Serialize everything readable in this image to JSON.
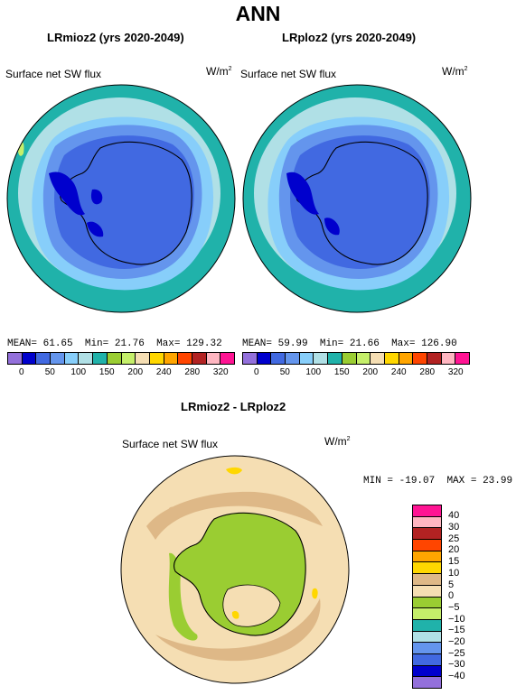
{
  "figure_title": "ANN",
  "panels": [
    {
      "title": "LRmioz2 (yrs 2020-2049)",
      "variable": "Surface net SW flux",
      "units_base": "W/m",
      "units_exp": "2",
      "mean_label": "MEAN=",
      "mean": "61.65",
      "min_label": "Min=",
      "min": "21.76",
      "max_label": "Max=",
      "max": "129.32"
    },
    {
      "title": "LRploz2 (yrs 2020-2049)",
      "variable": "Surface net SW flux",
      "units_base": "W/m",
      "units_exp": "2",
      "mean_label": "MEAN=",
      "mean": "59.99",
      "min_label": "Min=",
      "min": "21.66",
      "max_label": "Max=",
      "max": "126.90"
    }
  ],
  "top_colorbar": {
    "colors": [
      "#9370db",
      "#0000cd",
      "#4169e1",
      "#6495ed",
      "#87cefa",
      "#b0e0e6",
      "#20b2aa",
      "#9acd32",
      "#c5ef6a",
      "#f5deb3",
      "#ffd700",
      "#ffa500",
      "#ff4500",
      "#b22222",
      "#ffb6c1",
      "#ff1493"
    ],
    "tick_labels": [
      "0",
      "50",
      "100",
      "150",
      "200",
      "240",
      "280",
      "320"
    ]
  },
  "difference": {
    "title": "LRmioz2 - LRploz2",
    "variable": "Surface net SW flux",
    "units_base": "W/m",
    "units_exp": "2",
    "min_label": "MIN =",
    "min": "-19.07",
    "max_label": "MAX =",
    "max": "23.99",
    "colorbar": {
      "colors": [
        "#ff1493",
        "#ffb6c1",
        "#b22222",
        "#ff4500",
        "#ffa500",
        "#ffd700",
        "#deb887",
        "#f5deb3",
        "#9acd32",
        "#c5ef6a",
        "#20b2aa",
        "#b0e0e6",
        "#6495ed",
        "#4169e1",
        "#0000cd",
        "#9370db"
      ],
      "labels": [
        "40",
        "30",
        "25",
        "20",
        "15",
        "10",
        "5",
        "0",
        "−5",
        "−10",
        "−15",
        "−20",
        "−25",
        "−30",
        "−40"
      ]
    }
  }
}
